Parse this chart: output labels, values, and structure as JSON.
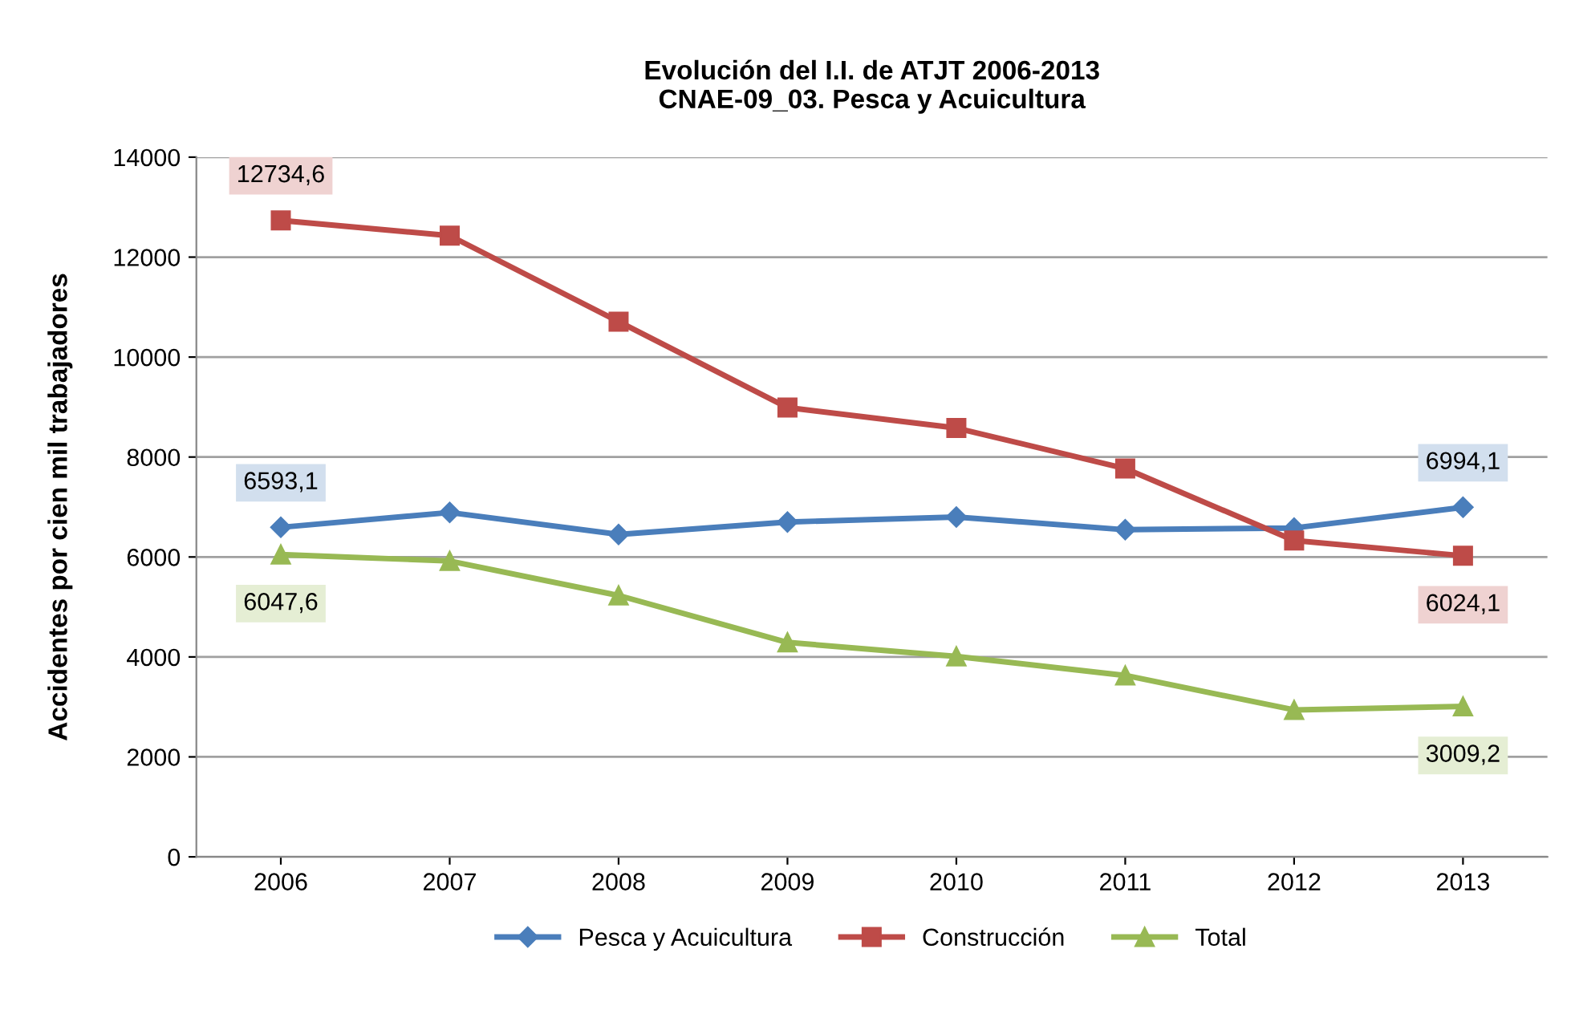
{
  "chart_data": {
    "type": "line",
    "title": "Evolución del I.I. de ATJT 2006-2013\nCNAE-09_03. Pesca y Acuicultura",
    "ylabel": "Accidentes por cien mil trabajadores",
    "categories": [
      "2006",
      "2007",
      "2008",
      "2009",
      "2010",
      "2011",
      "2012",
      "2013"
    ],
    "series": [
      {
        "name": "Pesca y Acuicultura",
        "color": "#4a7ebb",
        "marker": "diamond",
        "values": [
          6593.1,
          6890,
          6450,
          6700,
          6800,
          6545,
          6580,
          6994.1
        ],
        "value_labels": [
          "6593,1",
          null,
          null,
          null,
          null,
          null,
          null,
          "6994,1"
        ]
      },
      {
        "name": "Construcción",
        "color": "#be4b48",
        "marker": "square",
        "values": [
          12734.6,
          12430,
          10710,
          8990,
          8580,
          7770,
          6330,
          6024.1
        ],
        "value_labels": [
          "12734,6",
          null,
          null,
          null,
          null,
          null,
          null,
          "6024,1"
        ]
      },
      {
        "name": "Total",
        "color": "#98b954",
        "marker": "triangle",
        "values": [
          6047.6,
          5920,
          5230,
          4290,
          4010,
          3630,
          2940,
          3009.2
        ],
        "value_labels": [
          "6047,6",
          null,
          null,
          null,
          null,
          null,
          null,
          "3009,2"
        ]
      }
    ],
    "ylim": [
      0,
      14000
    ],
    "yticks": [
      0,
      2000,
      4000,
      6000,
      8000,
      10000,
      12000,
      14000
    ],
    "grid": "y",
    "legend": "bottom"
  }
}
